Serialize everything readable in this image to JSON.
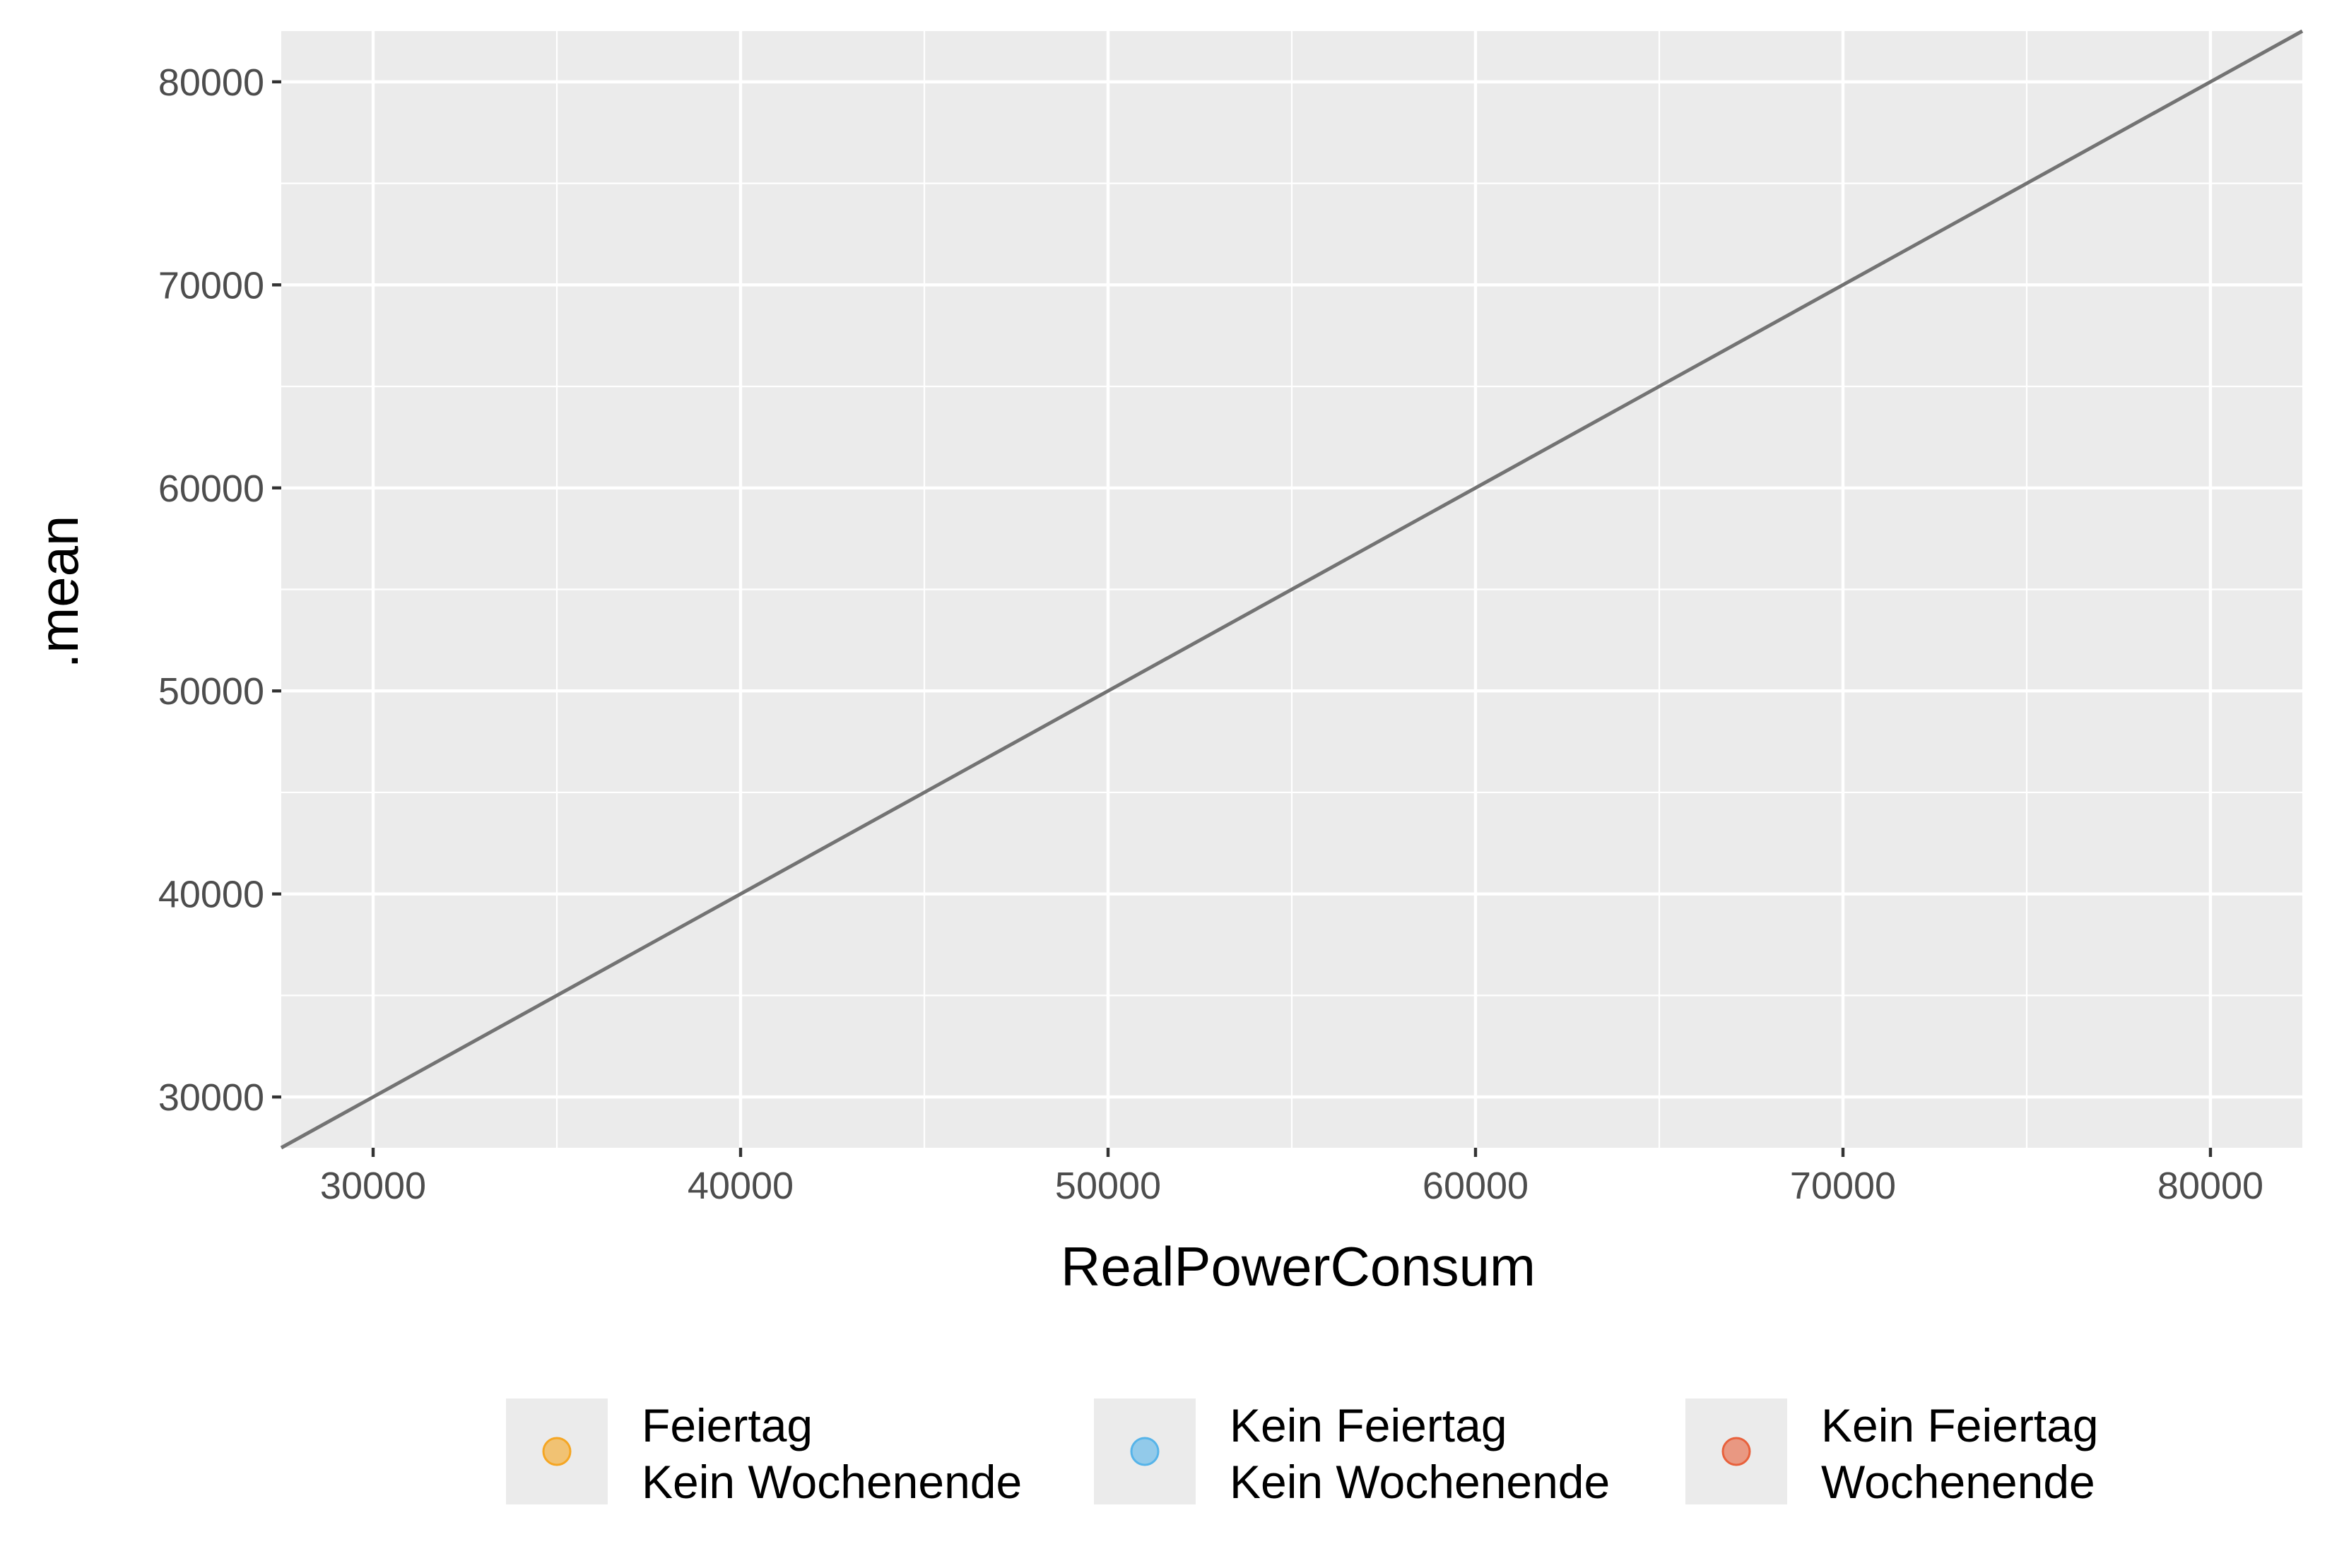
{
  "chart_data": {
    "type": "line",
    "xlabel": "RealPowerConsum",
    "ylabel": ".mean",
    "xlim": [
      27500,
      82500
    ],
    "ylim": [
      27500,
      82500
    ],
    "x_ticks": [
      30000,
      40000,
      50000,
      60000,
      70000,
      80000
    ],
    "y_ticks": [
      30000,
      40000,
      50000,
      60000,
      70000,
      80000
    ],
    "x_tick_labels": [
      "30000",
      "40000",
      "50000",
      "60000",
      "70000",
      "80000"
    ],
    "y_tick_labels": [
      "30000",
      "40000",
      "50000",
      "60000",
      "70000",
      "80000"
    ],
    "grid": true,
    "reference_line": {
      "x": [
        27500,
        82500
      ],
      "y": [
        27500,
        82500
      ],
      "color": "#737373"
    },
    "legend_position": "bottom",
    "legend": [
      {
        "line1": "Feiertag",
        "line2": "Kein Wochenende",
        "color": "#f5a623"
      },
      {
        "line1": "Kein Feiertag",
        "line2": "Kein Wochenende",
        "color": "#56b4e9"
      },
      {
        "line1": "Kein Feiertag",
        "line2": "Wochenende",
        "color": "#e8613c"
      }
    ],
    "panel_background": "#ebebeb"
  }
}
